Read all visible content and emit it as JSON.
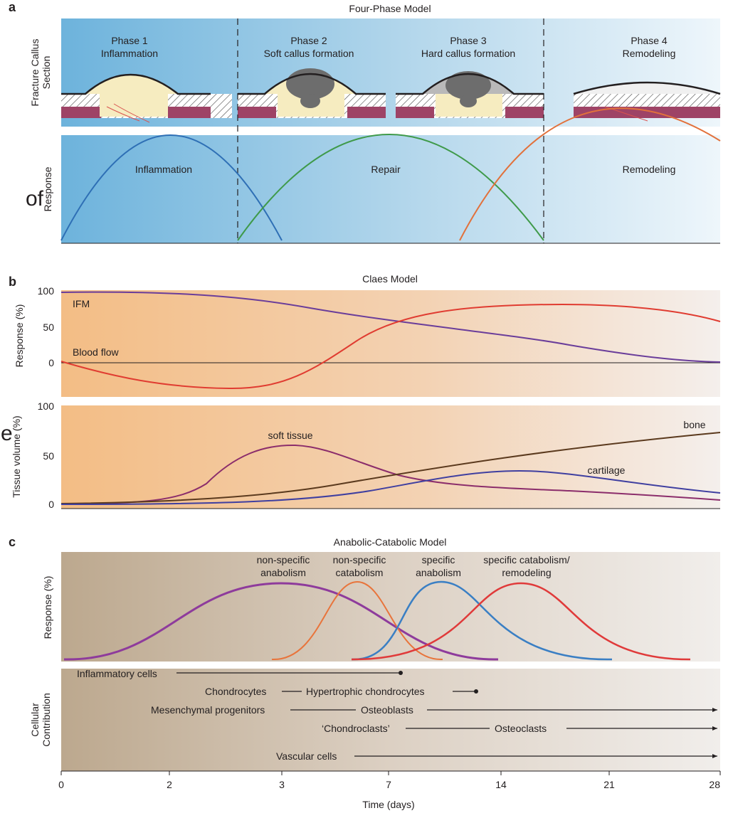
{
  "panel_a": {
    "letter": "a",
    "title": "Four-Phase Model",
    "callus_axis_label": "Fracture Callus Section",
    "response_axis_label": "Response",
    "phases": [
      {
        "name": "Phase 1",
        "desc": "Inflammation"
      },
      {
        "name": "Phase 2",
        "desc": "Soft callus formation"
      },
      {
        "name": "Phase 3",
        "desc": "Hard callus formation"
      },
      {
        "name": "Phase 4",
        "desc": "Remodeling"
      }
    ],
    "curves": [
      {
        "name": "Inflammation",
        "color": "#2e6fb5"
      },
      {
        "name": "Repair",
        "color": "#3f9a4a"
      },
      {
        "name": "Remodeling",
        "color": "#e2713b"
      }
    ]
  },
  "panel_b": {
    "letter": "b",
    "title": "Claes Model",
    "top_ylabel": "Response (%)",
    "top_yticks": [
      "100",
      "50",
      "0"
    ],
    "bottom_ylabel": "Tissue volume (%)",
    "bottom_yticks": [
      "100",
      "50",
      "0"
    ],
    "top_series": [
      {
        "name": "IFM",
        "color": "#6a3d9a"
      },
      {
        "name": "Blood flow",
        "color": "#e03c31"
      }
    ],
    "bottom_series": [
      {
        "name": "soft tissue",
        "color": "#8b2d6b"
      },
      {
        "name": "bone",
        "color": "#5b3a1e"
      },
      {
        "name": "cartilage",
        "color": "#3f3fa0"
      }
    ]
  },
  "panel_c": {
    "letter": "c",
    "title": "Anabolic-Catabolic Model",
    "ylabel": "Response (%)",
    "cell_ylabel": "Cellular Contribution",
    "curves": [
      {
        "label_line1": "non-specific",
        "label_line2": "anabolism",
        "color": "#8e3b9c"
      },
      {
        "label_line1": "non-specific",
        "label_line2": "catabolism",
        "color": "#e8743b"
      },
      {
        "label_line1": "specific",
        "label_line2": "anabolism",
        "color": "#3a7fc4"
      },
      {
        "label_line1": "specific catabolism/",
        "label_line2": "remodeling",
        "color": "#e03a3a"
      }
    ],
    "cells": {
      "inflammatory": "Inflammatory cells",
      "chondrocytes": "Chondrocytes",
      "hypertrophic": "Hypertrophic chondrocytes",
      "mesenchymal": "Mesenchymal progenitors",
      "osteoblasts": "Osteoblasts",
      "chondroclasts": "‘Chondroclasts’",
      "osteoclasts": "Osteoclasts",
      "vascular": "Vascular cells"
    }
  },
  "x_axis": {
    "label": "Time (days)",
    "ticks": [
      "0",
      "2",
      "3",
      "7",
      "14",
      "21",
      "28"
    ]
  },
  "stray_text": {
    "left_of": "of",
    "left_e": "e"
  }
}
